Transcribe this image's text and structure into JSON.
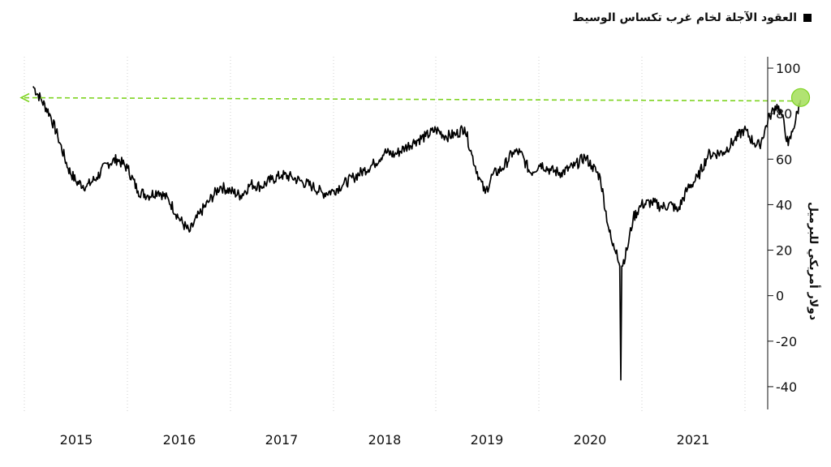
{
  "chart_data": {
    "type": "line",
    "legend": [
      "العقود الآجلة لخام غرب تكساس الوسيط"
    ],
    "ylabel": "دولار أمريكي للبرميل",
    "ylim": [
      -50,
      105
    ],
    "yticks": [
      -40,
      -20,
      0,
      20,
      40,
      60,
      80,
      100
    ],
    "ytick_labels": [
      "-40",
      "-20",
      "0",
      "20",
      "40",
      "60",
      "80",
      "100"
    ],
    "xticks": [
      "2015",
      "2016",
      "2017",
      "2018",
      "2019",
      "2020",
      "2021"
    ],
    "grid": "vertical-dotted",
    "series": [
      {
        "values": [
          [
            2014.58,
            92
          ],
          [
            2014.66,
            86
          ],
          [
            2014.74,
            80
          ],
          [
            2014.82,
            70
          ],
          [
            2014.92,
            56
          ],
          [
            2015.0,
            50
          ],
          [
            2015.1,
            48
          ],
          [
            2015.2,
            52
          ],
          [
            2015.3,
            58
          ],
          [
            2015.4,
            60
          ],
          [
            2015.5,
            56
          ],
          [
            2015.6,
            46
          ],
          [
            2015.7,
            44
          ],
          [
            2015.8,
            46
          ],
          [
            2015.9,
            42
          ],
          [
            2016.0,
            34
          ],
          [
            2016.1,
            28
          ],
          [
            2016.2,
            36
          ],
          [
            2016.3,
            42
          ],
          [
            2016.4,
            48
          ],
          [
            2016.5,
            46
          ],
          [
            2016.6,
            44
          ],
          [
            2016.7,
            49
          ],
          [
            2016.8,
            48
          ],
          [
            2016.9,
            51
          ],
          [
            2017.0,
            53
          ],
          [
            2017.1,
            52
          ],
          [
            2017.2,
            50
          ],
          [
            2017.3,
            48
          ],
          [
            2017.4,
            45
          ],
          [
            2017.5,
            46
          ],
          [
            2017.6,
            49
          ],
          [
            2017.7,
            52
          ],
          [
            2017.8,
            55
          ],
          [
            2017.9,
            58
          ],
          [
            2018.0,
            63
          ],
          [
            2018.1,
            62
          ],
          [
            2018.2,
            65
          ],
          [
            2018.3,
            68
          ],
          [
            2018.4,
            70
          ],
          [
            2018.5,
            73
          ],
          [
            2018.6,
            70
          ],
          [
            2018.7,
            71
          ],
          [
            2018.78,
            74
          ],
          [
            2018.85,
            62
          ],
          [
            2018.92,
            52
          ],
          [
            2018.98,
            45
          ],
          [
            2019.05,
            53
          ],
          [
            2019.15,
            56
          ],
          [
            2019.25,
            63
          ],
          [
            2019.32,
            63
          ],
          [
            2019.42,
            54
          ],
          [
            2019.52,
            58
          ],
          [
            2019.62,
            55
          ],
          [
            2019.72,
            54
          ],
          [
            2019.85,
            57
          ],
          [
            2019.95,
            61
          ],
          [
            2020.02,
            57
          ],
          [
            2020.1,
            52
          ],
          [
            2020.18,
            30
          ],
          [
            2020.22,
            22
          ],
          [
            2020.26,
            20
          ],
          [
            2020.29,
            13
          ],
          [
            2020.3,
            -37
          ],
          [
            2020.31,
            13
          ],
          [
            2020.36,
            20
          ],
          [
            2020.42,
            34
          ],
          [
            2020.5,
            40
          ],
          [
            2020.6,
            41
          ],
          [
            2020.7,
            39
          ],
          [
            2020.8,
            40
          ],
          [
            2020.85,
            37
          ],
          [
            2020.95,
            47
          ],
          [
            2021.05,
            52
          ],
          [
            2021.15,
            62
          ],
          [
            2021.3,
            63
          ],
          [
            2021.4,
            68
          ],
          [
            2021.5,
            73
          ],
          [
            2021.6,
            67
          ],
          [
            2021.65,
            66
          ],
          [
            2021.75,
            79
          ],
          [
            2021.82,
            84
          ],
          [
            2021.87,
            79
          ],
          [
            2021.93,
            66
          ],
          [
            2021.97,
            72
          ],
          [
            2022.05,
            86
          ]
        ]
      }
    ],
    "annotations": {
      "reference_level": 87
    },
    "colors": {
      "line": "#000000",
      "annotation": "#7ed321",
      "marker_fill": "#a8e063"
    }
  }
}
